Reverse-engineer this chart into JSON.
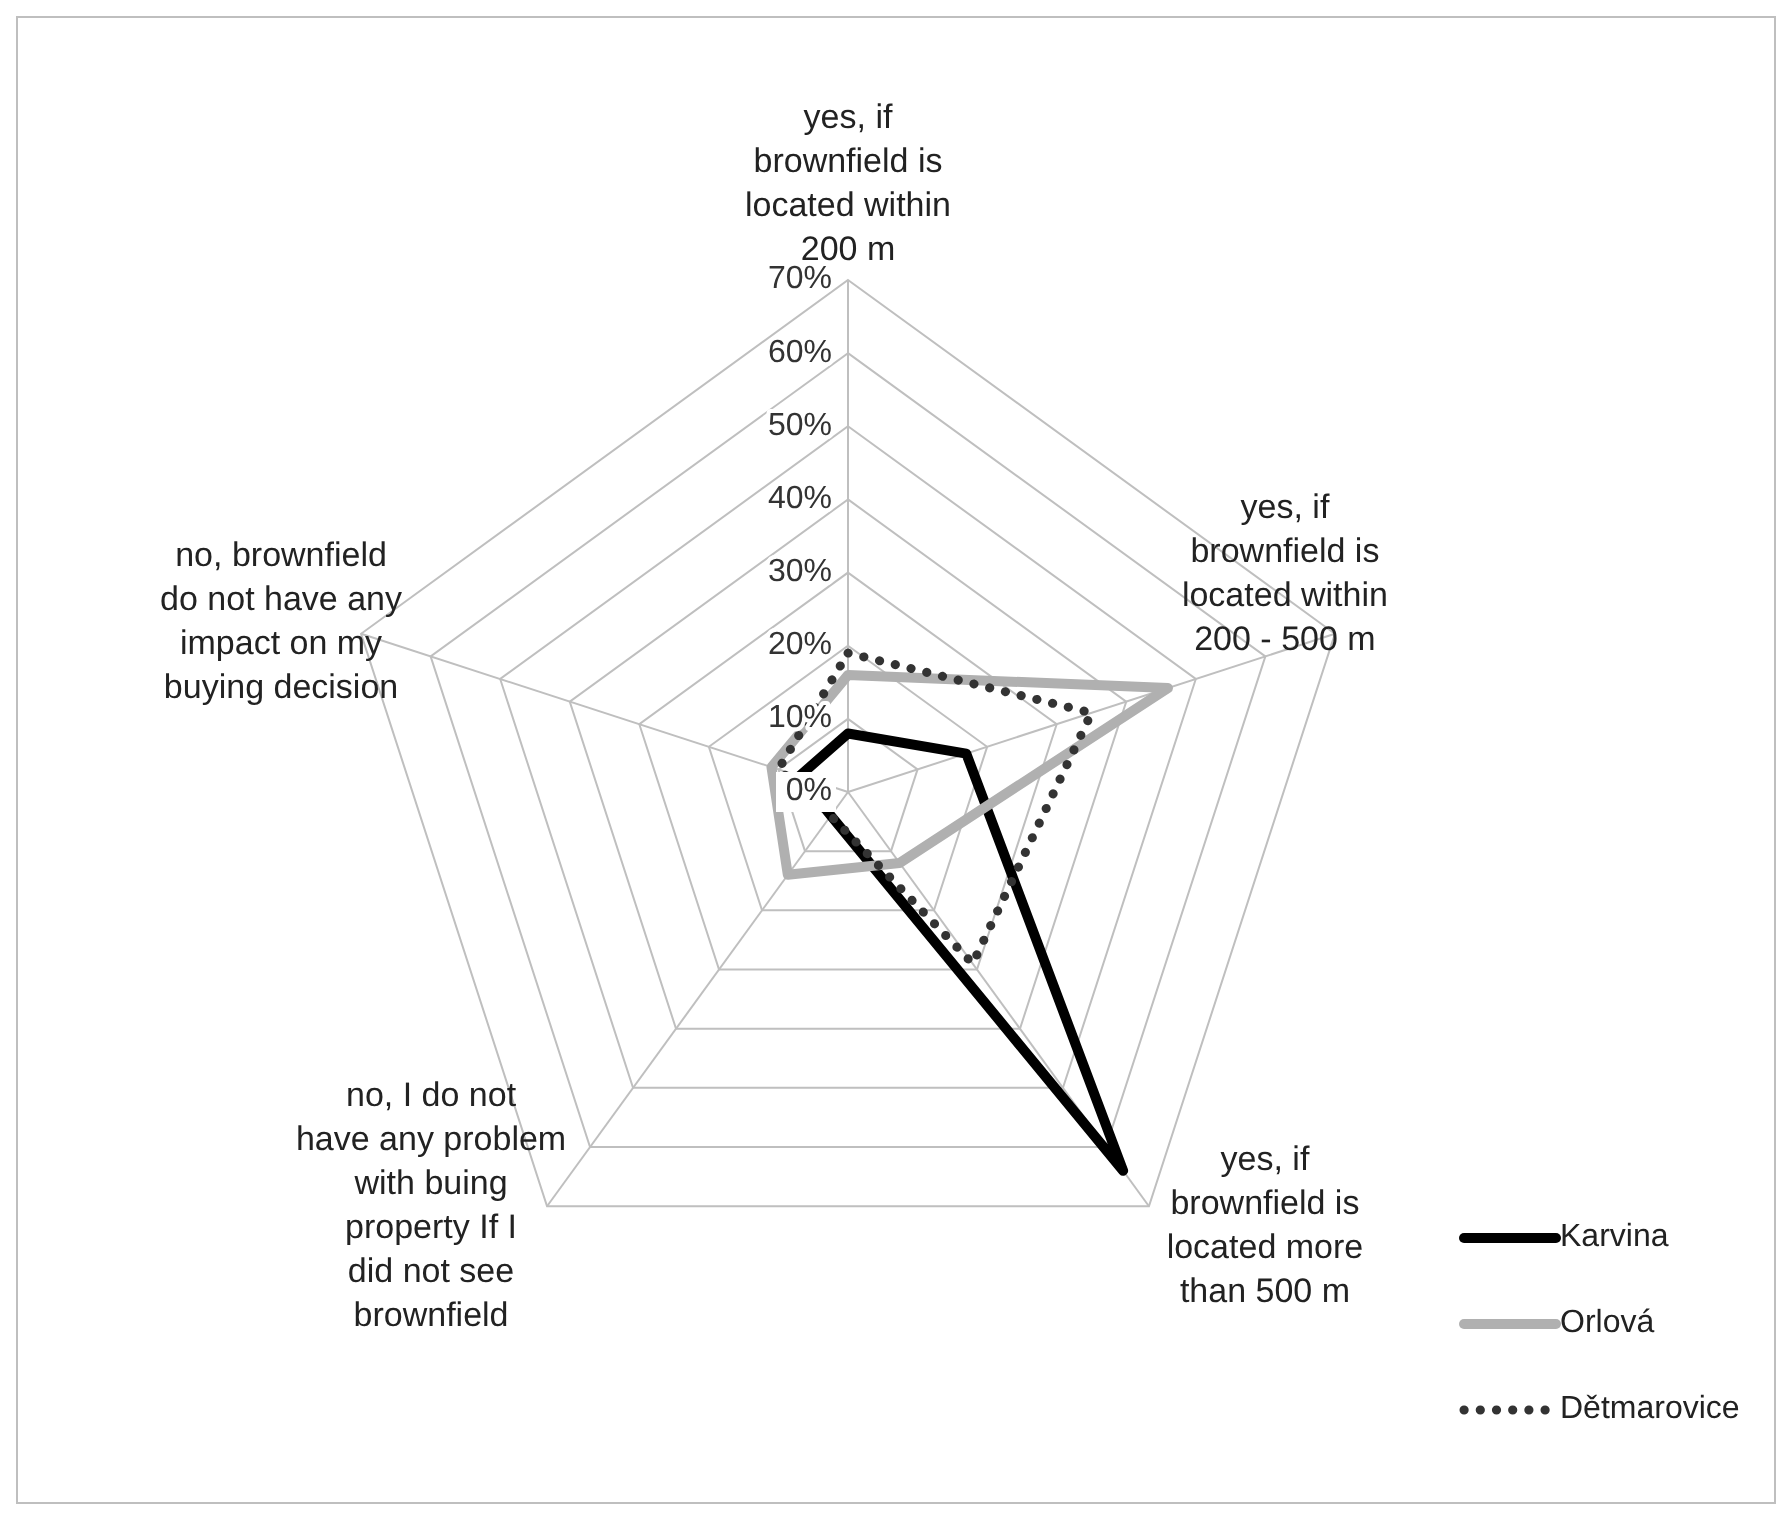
{
  "chart_data": {
    "type": "radar",
    "categories": [
      "yes, if brownfield is located within 200 m",
      "yes, if brownfield is located within 200 - 500 m",
      "yes, if brownfield is located more than 500 m",
      "no, I do not have any problem with buing property If I did not see brownfield",
      "no, brownfield do not have any impact on my buying decision"
    ],
    "series": [
      {
        "name": "Karvina",
        "color": "#000000",
        "values": [
          8,
          17,
          64,
          4,
          7
        ],
        "line_style": "solid"
      },
      {
        "name": "Orlová",
        "color": "#b0b0b0",
        "values": [
          16,
          46,
          12,
          14,
          11
        ],
        "line_style": "solid"
      },
      {
        "name": "Dětmarovice",
        "color": "#333333",
        "values": [
          19,
          35,
          29,
          4,
          10
        ],
        "line_style": "dotted"
      }
    ],
    "ylim": [
      0,
      70
    ],
    "yticks": [
      {
        "value": 0,
        "label": "0%"
      },
      {
        "value": 10,
        "label": "10%"
      },
      {
        "value": 20,
        "label": "20%"
      },
      {
        "value": 30,
        "label": "30%"
      },
      {
        "value": 40,
        "label": "40%"
      },
      {
        "value": 50,
        "label": "50%"
      },
      {
        "value": 60,
        "label": "60%"
      },
      {
        "value": 70,
        "label": "70%"
      }
    ],
    "grid": true,
    "legend": "right"
  }
}
